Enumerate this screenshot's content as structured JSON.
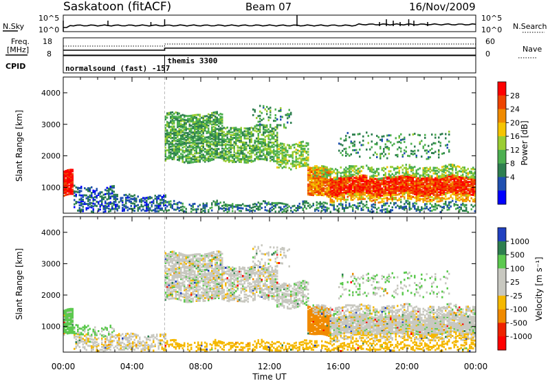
{
  "header": {
    "station": "Saskatoon (fitACF)",
    "beam": "Beam 07",
    "date": "16/Nov/2009"
  },
  "panels": {
    "nsky": {
      "label": "N.Sky",
      "tick_top": "10^5",
      "tick_bottom": "10^0"
    },
    "nsearch": {
      "label": "N.Search",
      "tick_top": "10^5",
      "tick_bottom": "10^0"
    },
    "freq": {
      "label_line1": "Freq.",
      "label_line2": "[MHz]",
      "tick_top": "18",
      "tick_bottom": "8"
    },
    "nave": {
      "label": "Nave",
      "tick_top": "60",
      "tick_bottom": "0"
    },
    "cpid": {
      "label": "CPID",
      "segment1": "normalsound (fast)  -157",
      "segment2": "themis 3300"
    }
  },
  "axes": {
    "ylabel": "Slant Range [km]",
    "xlabel": "Time UT",
    "y_ticks": [
      "1000",
      "2000",
      "3000",
      "4000"
    ],
    "x_ticks": [
      "00:00",
      "04:00",
      "08:00",
      "12:00",
      "16:00",
      "20:00",
      "00:00"
    ]
  },
  "colorbars": {
    "power": {
      "label": "Power [dB]",
      "ticks": [
        "4",
        "8",
        "12",
        "16",
        "20",
        "24",
        "28"
      ],
      "colors": [
        "#0000ff",
        "#1f4fb0",
        "#2e7f4f",
        "#4caf50",
        "#9acd32",
        "#f5c400",
        "#f08a00",
        "#ee4400",
        "#ff0000"
      ]
    },
    "velocity": {
      "label": "Velocity [m s⁻¹]",
      "ticks": [
        "1000",
        "500",
        "100",
        "25",
        "-25",
        "-100",
        "-500",
        "-1000"
      ],
      "colors": [
        "#2040c0",
        "#2e7f4f",
        "#5cc94f",
        "#c8c8c0",
        "#c8c8c0",
        "#f5b800",
        "#f08a00",
        "#ee2200",
        "#ff0000"
      ]
    }
  },
  "chart_data": {
    "type": "heatmap",
    "x_range_hours": [
      0,
      24
    ],
    "y_range_km": [
      180,
      4500
    ],
    "power_range_db": [
      0,
      30
    ],
    "velocity_range_ms": [
      -1000,
      1000
    ],
    "scatter_regions": [
      {
        "t0": 0.0,
        "t1": 0.6,
        "r0": 700,
        "r1": 1500,
        "p": 28,
        "v": 50,
        "density": 0.95
      },
      {
        "t0": 0.6,
        "t1": 5.9,
        "r0": 200,
        "r1": 700,
        "p": 6,
        "v": -10,
        "density": 0.5
      },
      {
        "t0": 0.6,
        "t1": 3.0,
        "r0": 700,
        "r1": 1000,
        "p": 6,
        "v": 40,
        "density": 0.35
      },
      {
        "t0": 5.9,
        "t1": 9.2,
        "r0": 1800,
        "r1": 3300,
        "p": 11,
        "v": 0,
        "density": 0.7
      },
      {
        "t0": 9.2,
        "t1": 12.4,
        "r0": 1800,
        "r1": 2900,
        "p": 12,
        "v": 0,
        "density": 0.6
      },
      {
        "t0": 12.4,
        "t1": 14.2,
        "r0": 1600,
        "r1": 2400,
        "p": 14,
        "v": 5,
        "density": 0.55
      },
      {
        "t0": 14.2,
        "t1": 15.5,
        "r0": 700,
        "r1": 1600,
        "p": 22,
        "v": -200,
        "density": 0.9
      },
      {
        "t0": 15.5,
        "t1": 24.0,
        "r0": 750,
        "r1": 1300,
        "p": 26,
        "v": 0,
        "density": 0.92
      },
      {
        "t0": 15.5,
        "t1": 24.0,
        "r0": 550,
        "r1": 750,
        "p": 20,
        "v": -30,
        "density": 0.6
      },
      {
        "t0": 14.5,
        "t1": 24.0,
        "r0": 1300,
        "r1": 1650,
        "p": 14,
        "v": 0,
        "density": 0.5
      },
      {
        "t0": 5.9,
        "t1": 24.0,
        "r0": 200,
        "r1": 500,
        "p": 8,
        "v": -60,
        "density": 0.45
      },
      {
        "t0": 16.0,
        "t1": 22.5,
        "r0": 1900,
        "r1": 2700,
        "p": 10,
        "v": 20,
        "density": 0.15
      },
      {
        "t0": 11.0,
        "t1": 13.2,
        "r0": 2900,
        "r1": 3500,
        "p": 10,
        "v": 0,
        "density": 0.2
      }
    ],
    "nsky_spikes_hours": [
      0.0,
      2.6,
      5.1,
      5.9,
      13.6,
      18.4,
      18.8,
      19.2,
      19.6,
      20.1,
      20.4,
      21.2
    ],
    "freq_change_hour": 5.9,
    "cpid_change_hour": 5.9
  }
}
